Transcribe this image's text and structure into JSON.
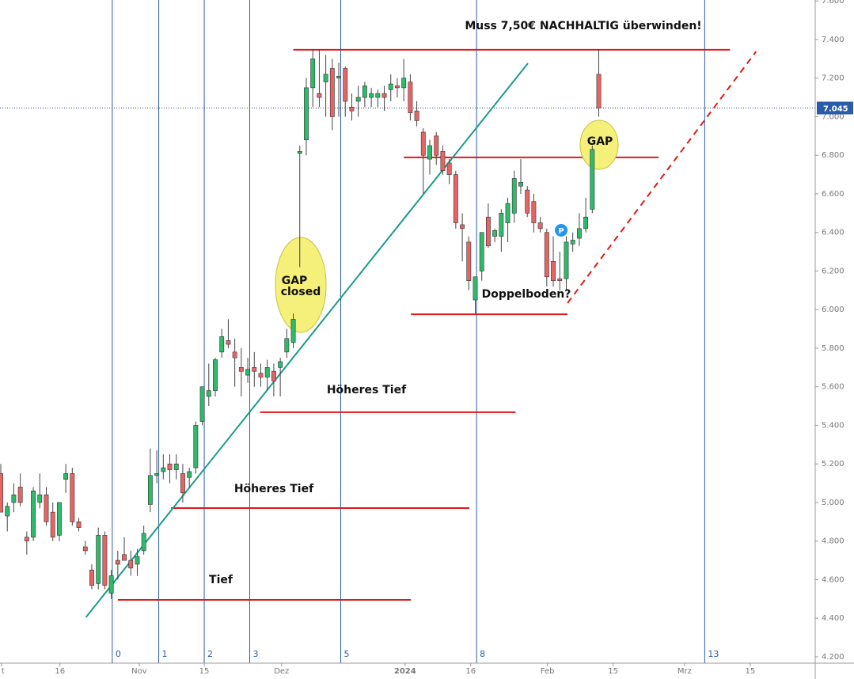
{
  "chart_data": {
    "type": "candlestick",
    "up_color": "#2dbb6a",
    "down_color": "#e86464",
    "open": [
      5.15,
      4.93,
      5.0,
      5.08,
      4.82,
      4.82,
      5.0,
      5.04,
      4.95,
      4.83,
      5.12,
      5.15,
      4.9,
      4.77,
      4.65,
      4.58,
      4.83,
      4.53,
      4.7,
      4.73,
      4.7,
      4.68,
      4.75,
      4.99,
      5.14,
      5.16,
      5.2,
      5.17,
      5.15,
      5.13,
      5.18,
      5.42,
      5.55,
      5.58,
      5.78,
      5.84,
      5.78,
      5.7,
      5.66,
      5.7,
      5.67,
      5.65,
      5.68,
      5.7,
      5.78,
      5.83,
      6.81,
      6.88,
      7.15,
      7.12,
      7.18,
      7.25,
      7.2,
      7.25,
      7.05,
      7.08,
      7.1,
      7.1,
      7.1,
      7.12,
      7.14,
      7.16,
      7.15,
      7.18,
      7.03,
      6.92,
      6.78,
      6.9,
      6.82,
      6.76,
      6.7,
      6.44,
      6.35,
      6.05,
      6.2,
      6.48,
      6.38,
      6.38,
      6.45,
      6.5,
      6.64,
      6.62,
      6.56,
      6.45,
      6.4,
      6.25,
      6.16,
      6.16,
      6.34,
      6.37,
      6.42,
      6.52,
      7.22
    ],
    "high": [
      5.2,
      5.0,
      5.1,
      5.15,
      4.85,
      5.08,
      5.15,
      5.08,
      5.0,
      5.0,
      5.2,
      5.18,
      4.92,
      4.8,
      4.68,
      4.87,
      4.85,
      4.65,
      4.75,
      4.82,
      4.75,
      4.76,
      4.88,
      5.28,
      5.27,
      5.25,
      5.25,
      5.25,
      5.2,
      5.18,
      5.42,
      5.6,
      5.72,
      5.75,
      5.9,
      5.95,
      5.85,
      5.8,
      5.75,
      5.78,
      5.72,
      5.74,
      5.72,
      5.75,
      5.9,
      5.98,
      6.85,
      7.2,
      7.35,
      7.35,
      7.32,
      7.3,
      7.28,
      7.26,
      7.12,
      7.16,
      7.18,
      7.15,
      7.14,
      7.16,
      7.22,
      7.2,
      7.3,
      7.22,
      7.08,
      6.94,
      6.88,
      6.92,
      6.85,
      6.78,
      6.72,
      6.5,
      6.38,
      6.17,
      6.4,
      6.55,
      6.42,
      6.52,
      6.58,
      6.72,
      6.78,
      6.64,
      6.6,
      6.48,
      6.42,
      6.38,
      6.3,
      6.38,
      6.4,
      6.5,
      6.58,
      6.85,
      7.35
    ],
    "low": [
      4.95,
      4.85,
      4.95,
      4.98,
      4.73,
      4.8,
      4.97,
      4.88,
      4.8,
      4.8,
      5.05,
      4.88,
      4.85,
      4.73,
      4.55,
      4.55,
      4.55,
      4.5,
      4.6,
      4.7,
      4.62,
      4.62,
      4.73,
      4.95,
      5.1,
      5.12,
      5.1,
      5.12,
      5.0,
      5.08,
      5.15,
      5.4,
      5.5,
      5.55,
      5.75,
      5.8,
      5.6,
      5.55,
      5.62,
      5.6,
      5.6,
      5.58,
      5.55,
      5.55,
      5.75,
      5.8,
      6.22,
      6.8,
      7.05,
      7.05,
      7.0,
      6.93,
      7.0,
      7.0,
      6.98,
      7.0,
      7.05,
      7.05,
      7.05,
      7.03,
      7.08,
      7.1,
      7.08,
      6.98,
      6.95,
      6.6,
      6.7,
      6.75,
      6.7,
      6.65,
      6.42,
      6.25,
      6.1,
      5.98,
      6.15,
      6.32,
      6.35,
      6.3,
      6.35,
      6.45,
      6.6,
      6.48,
      6.4,
      6.4,
      6.12,
      6.12,
      6.1,
      6.1,
      6.3,
      6.33,
      6.4,
      6.5,
      7.0
    ],
    "close": [
      4.95,
      4.98,
      5.04,
      5.0,
      4.8,
      5.06,
      5.04,
      4.9,
      4.82,
      5.0,
      5.15,
      4.9,
      4.87,
      4.75,
      4.57,
      4.83,
      4.57,
      4.62,
      4.68,
      4.7,
      4.66,
      4.72,
      4.84,
      5.14,
      5.15,
      5.18,
      5.17,
      5.2,
      5.05,
      5.16,
      5.4,
      5.6,
      5.58,
      5.74,
      5.86,
      5.82,
      5.75,
      5.68,
      5.69,
      5.68,
      5.65,
      5.7,
      5.63,
      5.73,
      5.85,
      5.95,
      6.82,
      7.15,
      7.3,
      7.1,
      7.22,
      7.0,
      7.21,
      7.08,
      7.03,
      7.1,
      7.16,
      7.12,
      7.12,
      7.1,
      7.17,
      7.15,
      7.2,
      7.02,
      6.98,
      6.8,
      6.85,
      6.8,
      6.72,
      6.7,
      6.45,
      6.42,
      6.15,
      6.17,
      6.4,
      6.33,
      6.41,
      6.5,
      6.55,
      6.68,
      6.66,
      6.5,
      6.45,
      6.42,
      6.17,
      6.15,
      6.15,
      6.35,
      6.36,
      6.42,
      6.48,
      6.83,
      7.045
    ],
    "xlim": [
      0,
      125.3
    ],
    "xticks": [
      {
        "value": 0.1,
        "label": "t"
      },
      {
        "value": 9.1,
        "label": "16"
      },
      {
        "value": 21.3,
        "label": "Nov"
      },
      {
        "value": 31.3,
        "label": "15"
      },
      {
        "value": 43.2,
        "label": "Dez"
      },
      {
        "value": 62.2,
        "label": "2024"
      },
      {
        "value": 72.3,
        "label": "16"
      },
      {
        "value": 84.1,
        "label": "Feb"
      },
      {
        "value": 94.2,
        "label": "15"
      },
      {
        "value": 105.2,
        "label": "Mrz"
      },
      {
        "value": 115.3,
        "label": "15"
      }
    ],
    "ylim": [
      4.167,
      7.605
    ],
    "yticks": [
      {
        "value": 4.2,
        "label": "4.200"
      },
      {
        "value": 4.4,
        "label": "4.400"
      },
      {
        "value": 4.6,
        "label": "4.600"
      },
      {
        "value": 4.8,
        "label": "4.800"
      },
      {
        "value": 5.0,
        "label": "5.000"
      },
      {
        "value": 5.2,
        "label": "5.200"
      },
      {
        "value": 5.4,
        "label": "5.400"
      },
      {
        "value": 5.6,
        "label": "5.600"
      },
      {
        "value": 5.8,
        "label": "5.800"
      },
      {
        "value": 6.0,
        "label": "6.000"
      },
      {
        "value": 6.2,
        "label": "6.200"
      },
      {
        "value": 6.4,
        "label": "6.400"
      },
      {
        "value": 6.6,
        "label": "6.600"
      },
      {
        "value": 6.8,
        "label": "6.800"
      },
      {
        "value": 7.0,
        "label": "7.000"
      },
      {
        "value": 7.2,
        "label": "7.200"
      },
      {
        "value": 7.4,
        "label": "7.400"
      },
      {
        "value": 7.6,
        "label": "7.600"
      }
    ],
    "last_price": {
      "value": 7.045,
      "label": "7.045"
    },
    "time_zones": [
      {
        "x": 17.15,
        "label": "0"
      },
      {
        "x": 24.3,
        "label": "1"
      },
      {
        "x": 31.3,
        "label": "2"
      },
      {
        "x": 38.3,
        "label": "3"
      },
      {
        "x": 52.3,
        "label": "5"
      },
      {
        "x": 73.2,
        "label": "8"
      },
      {
        "x": 108.3,
        "label": "13"
      }
    ],
    "levels": [
      {
        "y": 7.347,
        "x": [
          45,
          112.2
        ]
      },
      {
        "y": 6.789,
        "x": [
          62,
          101.2
        ]
      },
      {
        "y": 5.976,
        "x": [
          63.1,
          87.2
        ]
      },
      {
        "y": 5.468,
        "x": [
          39.9,
          79.2
        ]
      },
      {
        "y": 4.971,
        "x": [
          26.2,
          72.1
        ]
      },
      {
        "y": 4.495,
        "x": [
          18,
          63.1
        ]
      }
    ],
    "trendline": {
      "x": [
        13.1,
        81.1
      ],
      "y": [
        4.405,
        7.277
      ]
    },
    "dashed_trendline": {
      "x": [
        87.2,
        116.2
      ],
      "y": [
        6.034,
        7.338
      ]
    },
    "annotations": {
      "title": "Muss 7,50€ NACHHALTIG überwinden!",
      "gap_closed_1": "GAP",
      "gap_closed_2": "closed",
      "gap": "GAP",
      "double_bottom": "Doppelboden?",
      "higher_low_1": "Höheres Tief",
      "higher_low_2": "Höheres Tief",
      "low": "Tief",
      "p_marker": "P"
    }
  }
}
